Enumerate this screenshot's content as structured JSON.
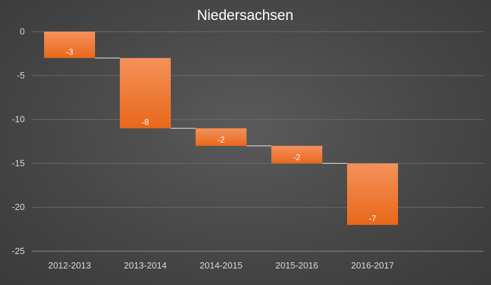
{
  "chart_data": {
    "type": "waterfall",
    "title": "Niedersachsen",
    "categories": [
      "2012-2013",
      "2013-2014",
      "2014-2015",
      "2015-2016",
      "2016-2017"
    ],
    "values": [
      -3,
      -8,
      -2,
      -2,
      -7
    ],
    "labels": [
      "-3",
      "-8",
      "-2",
      "-2",
      "-7"
    ],
    "ylim": [
      -25,
      0
    ],
    "yticks": [
      0,
      -5,
      -10,
      -15,
      -20,
      -25
    ],
    "grid": true,
    "legend": "none",
    "bar_color_top": "#f4915a",
    "bar_color_bottom": "#e8681a"
  }
}
